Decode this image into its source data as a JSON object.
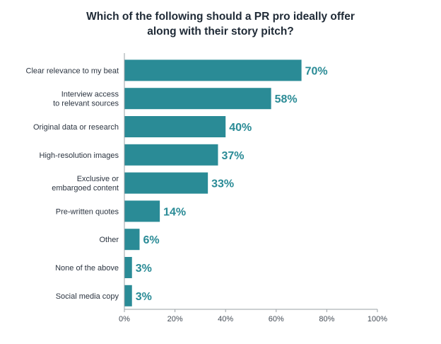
{
  "chart_data": {
    "type": "bar",
    "orientation": "horizontal",
    "title_lines": [
      "Which of the following should a PR pro ideally offer",
      "along with their story pitch?"
    ],
    "categories": [
      [
        "Clear relevance to my beat"
      ],
      [
        "Interview access",
        "to relevant sources"
      ],
      [
        "Original data or research"
      ],
      [
        "High-resolution images"
      ],
      [
        "Exclusive or",
        "embargoed content"
      ],
      [
        "Pre-written quotes"
      ],
      [
        "Other"
      ],
      [
        "None of the above"
      ],
      [
        "Social media copy"
      ]
    ],
    "values": [
      70,
      58,
      40,
      37,
      33,
      14,
      6,
      3,
      3
    ],
    "value_labels": [
      "70%",
      "58%",
      "40%",
      "37%",
      "33%",
      "14%",
      "6%",
      "3%",
      "3%"
    ],
    "xlim": [
      0,
      100
    ],
    "x_ticks": [
      0,
      20,
      40,
      60,
      80,
      100
    ],
    "x_tick_labels": [
      "0%",
      "20%",
      "40%",
      "60%",
      "80%",
      "100%"
    ],
    "grid": false,
    "legend": "none",
    "bar_color": "#2a8b96",
    "label_color": "#2a8b96",
    "axis_color": "#9aa0a6"
  }
}
